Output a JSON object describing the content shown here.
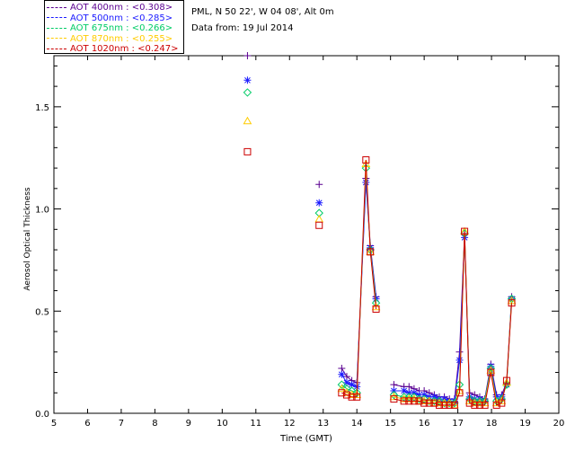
{
  "header": {
    "site": "PML, N 50 22', W 04 08', Alt 0m",
    "date": "Data from: 19 Jul 2014"
  },
  "legend": [
    {
      "label": "AOT  400nm : <0.308>",
      "color": "#5a0090"
    },
    {
      "label": "AOT  500nm : <0.285>",
      "color": "#1a1aff"
    },
    {
      "label": "AOT  675nm : <0.266>",
      "color": "#00cc66"
    },
    {
      "label": "AOT  870nm : <0.255>",
      "color": "#ffcc00"
    },
    {
      "label": "AOT 1020nm : <0.247>",
      "color": "#cc0000"
    }
  ],
  "chart_data": {
    "type": "scatter",
    "title": "",
    "xlabel": "Time (GMT)",
    "ylabel": "Aerosol Optical Thickness",
    "xlim": [
      5,
      20
    ],
    "ylim": [
      0,
      1.75
    ],
    "xticks": [
      5,
      6,
      7,
      8,
      9,
      10,
      11,
      12,
      13,
      14,
      15,
      16,
      17,
      18,
      19,
      20
    ],
    "yticks": [
      0.0,
      0.5,
      1.0,
      1.5
    ],
    "ytick_labels": [
      "0.0",
      "0.5",
      "1.0",
      "1.5"
    ],
    "x": [
      10.75,
      12.88,
      13.55,
      13.7,
      13.85,
      14.0,
      14.27,
      14.4,
      14.57,
      15.1,
      15.4,
      15.55,
      15.7,
      15.85,
      16.0,
      16.15,
      16.3,
      16.45,
      16.6,
      16.75,
      16.9,
      17.05,
      17.2,
      17.35,
      17.5,
      17.65,
      17.8,
      17.98,
      18.15,
      18.3,
      18.45,
      18.6
    ],
    "breaks_after": [
      0,
      1,
      8
    ],
    "series": [
      {
        "name": "AOT 400nm",
        "marker": "plus",
        "color": "#5a0090",
        "values": [
          1.75,
          1.12,
          0.22,
          0.18,
          0.16,
          0.15,
          1.15,
          0.82,
          0.57,
          0.14,
          0.13,
          0.13,
          0.12,
          0.11,
          0.11,
          0.1,
          0.09,
          0.08,
          0.08,
          0.07,
          0.07,
          0.3,
          0.88,
          0.1,
          0.09,
          0.08,
          0.07,
          0.24,
          0.09,
          0.09,
          0.15,
          0.57
        ]
      },
      {
        "name": "AOT 500nm",
        "marker": "asterisk",
        "color": "#1a1aff",
        "values": [
          1.63,
          1.03,
          0.19,
          0.15,
          0.14,
          0.13,
          1.13,
          0.81,
          0.56,
          0.11,
          0.11,
          0.1,
          0.1,
          0.09,
          0.09,
          0.08,
          0.08,
          0.07,
          0.07,
          0.06,
          0.06,
          0.26,
          0.86,
          0.08,
          0.07,
          0.07,
          0.06,
          0.23,
          0.08,
          0.08,
          0.14,
          0.56
        ]
      },
      {
        "name": "AOT 675nm",
        "marker": "diamond",
        "color": "#00cc66",
        "values": [
          1.57,
          0.98,
          0.14,
          0.12,
          0.11,
          0.1,
          1.2,
          0.8,
          0.54,
          0.09,
          0.08,
          0.08,
          0.08,
          0.07,
          0.07,
          0.06,
          0.06,
          0.06,
          0.05,
          0.05,
          0.05,
          0.14,
          0.88,
          0.07,
          0.06,
          0.06,
          0.06,
          0.22,
          0.06,
          0.07,
          0.14,
          0.56
        ]
      },
      {
        "name": "AOT 870nm",
        "marker": "triangle",
        "color": "#ffcc00",
        "values": [
          1.43,
          0.95,
          0.12,
          0.1,
          0.09,
          0.09,
          1.22,
          0.79,
          0.52,
          0.08,
          0.07,
          0.07,
          0.07,
          0.06,
          0.06,
          0.06,
          0.05,
          0.05,
          0.05,
          0.05,
          0.04,
          0.11,
          0.89,
          0.06,
          0.05,
          0.05,
          0.05,
          0.21,
          0.05,
          0.06,
          0.15,
          0.55
        ]
      },
      {
        "name": "AOT 1020nm",
        "marker": "square",
        "color": "#cc0000",
        "values": [
          1.28,
          0.92,
          0.1,
          0.09,
          0.08,
          0.08,
          1.24,
          0.79,
          0.51,
          0.07,
          0.06,
          0.06,
          0.06,
          0.06,
          0.05,
          0.05,
          0.05,
          0.04,
          0.04,
          0.04,
          0.04,
          0.1,
          0.89,
          0.05,
          0.04,
          0.04,
          0.04,
          0.2,
          0.04,
          0.05,
          0.16,
          0.54
        ]
      }
    ]
  }
}
